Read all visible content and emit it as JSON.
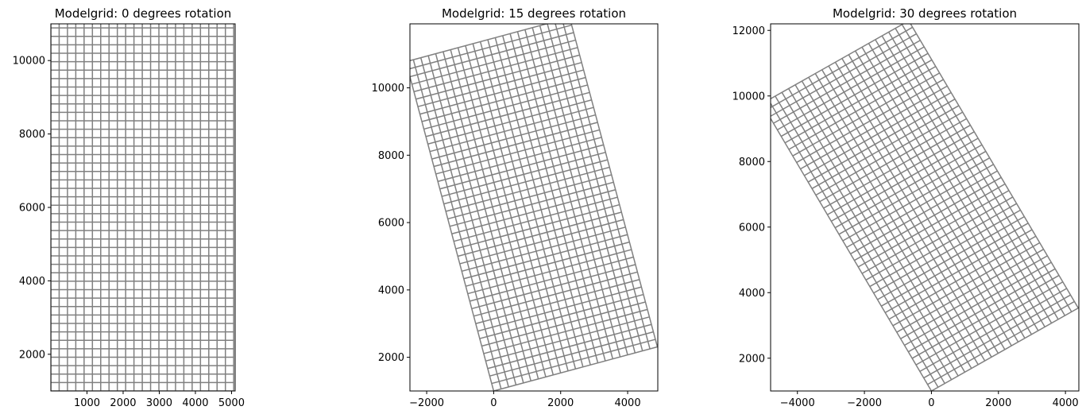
{
  "chart_data": [
    {
      "type": "line",
      "title": "Modelgrid: 0 degrees rotation",
      "rotation_deg": 0,
      "grid": {
        "origin": [
          0,
          1000
        ],
        "ncols": 22,
        "nrows": 44,
        "cell_size": 230
      },
      "xlim": [
        0,
        5100
      ],
      "ylim": [
        1000,
        11000
      ],
      "xticks": [
        1000,
        2000,
        3000,
        4000,
        5000
      ],
      "xtick_labels": [
        "1000",
        "2000",
        "3000",
        "4000",
        "5000"
      ],
      "yticks": [
        2000,
        4000,
        6000,
        8000,
        10000
      ],
      "ytick_labels": [
        "2000",
        "4000",
        "6000",
        "8000",
        "10000"
      ],
      "line_color": "#808080"
    },
    {
      "type": "line",
      "title": "Modelgrid: 15 degrees rotation",
      "rotation_deg": 15,
      "grid": {
        "origin": [
          0,
          1000
        ],
        "ncols": 22,
        "nrows": 44,
        "cell_size": 230
      },
      "xlim": [
        -2500,
        4900
      ],
      "ylim": [
        1000,
        11900
      ],
      "xticks": [
        -2000,
        0,
        2000,
        4000
      ],
      "xtick_labels": [
        "−2000",
        "0",
        "2000",
        "4000"
      ],
      "yticks": [
        2000,
        4000,
        6000,
        8000,
        10000
      ],
      "ytick_labels": [
        "2000",
        "4000",
        "6000",
        "8000",
        "10000"
      ],
      "line_color": "#808080"
    },
    {
      "type": "line",
      "title": "Modelgrid: 30 degrees rotation",
      "rotation_deg": 30,
      "grid": {
        "origin": [
          0,
          1000
        ],
        "ncols": 22,
        "nrows": 44,
        "cell_size": 230
      },
      "xlim": [
        -4800,
        4400
      ],
      "ylim": [
        1000,
        12200
      ],
      "xticks": [
        -4000,
        -2000,
        0,
        2000,
        4000
      ],
      "xtick_labels": [
        "−4000",
        "−2000",
        "0",
        "2000",
        "4000"
      ],
      "yticks": [
        2000,
        4000,
        6000,
        8000,
        10000,
        12000
      ],
      "ytick_labels": [
        "2000",
        "4000",
        "6000",
        "8000",
        "10000",
        "12000"
      ],
      "line_color": "#808080"
    }
  ]
}
